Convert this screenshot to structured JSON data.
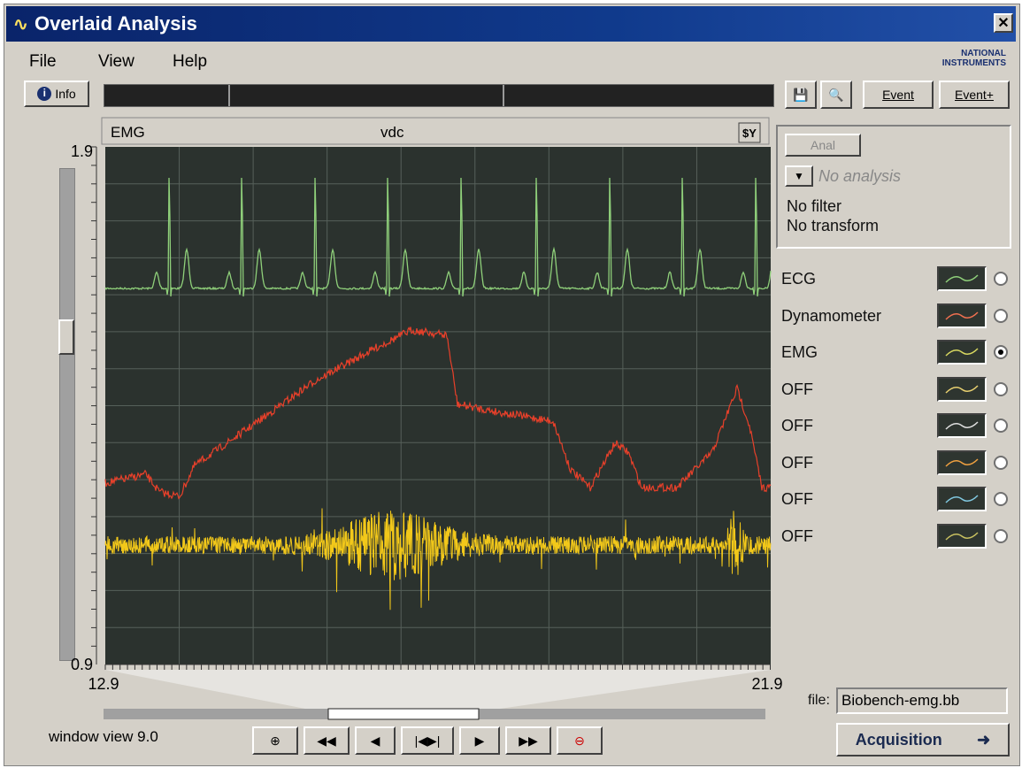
{
  "title_bar": {
    "title": "Overlaid Analysis"
  },
  "menu": [
    "File",
    "View",
    "Help"
  ],
  "logo": "NATIONAL INSTRUMENTS",
  "toolbar": {
    "info": "Info",
    "buttons": [
      "Event",
      "Event+"
    ]
  },
  "graph": {
    "label": "EMG",
    "unit": "vdc",
    "scale_button": "$Y",
    "y_max": "1.9",
    "y_min": "0.9",
    "x_min": "12.9",
    "x_max": "21.9"
  },
  "analysis": {
    "button": "Anal",
    "mode": "No analysis",
    "filter": "No filter",
    "transform": "No transform"
  },
  "channels": [
    {
      "name": "ECG",
      "color": "#8fd07a",
      "selected": false
    },
    {
      "name": "Dynamometer",
      "color": "#f07050",
      "selected": false
    },
    {
      "name": "EMG",
      "color": "#d8d860",
      "selected": true
    },
    {
      "name": "OFF",
      "color": "#e8d070",
      "selected": false
    },
    {
      "name": "OFF",
      "color": "#e0e0e0",
      "selected": false
    },
    {
      "name": "OFF",
      "color": "#f0a040",
      "selected": false
    },
    {
      "name": "OFF",
      "color": "#80c8e0",
      "selected": false
    },
    {
      "name": "OFF",
      "color": "#c8c060",
      "selected": false
    }
  ],
  "file": {
    "label": "file:",
    "name": "Biobench-emg.bb"
  },
  "window_view": "window view 9.0",
  "acquisition": "Acquisition"
}
